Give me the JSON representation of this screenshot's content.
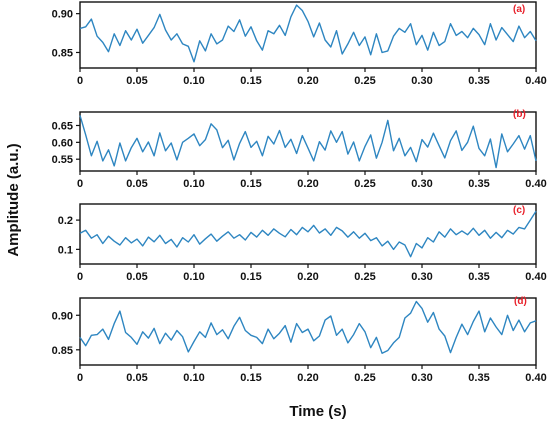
{
  "colors": {
    "series": "#2e86c1",
    "label": "#e8202a",
    "axis": "#111111"
  },
  "xlabel": "Time (s)",
  "ylabel": "Amplitude (a.u.)",
  "chart_data": [
    {
      "type": "line",
      "label": "(a)",
      "xlim": [
        0,
        0.4
      ],
      "ylim": [
        0.83,
        0.915
      ],
      "xticks": [
        "0",
        "0.05",
        "0.10",
        "0.15",
        "0.20",
        "0.25",
        "0.30",
        "0.35",
        "0.40"
      ],
      "yticks": [
        0.85,
        0.9
      ],
      "ytick_labels": [
        "0.85",
        "0.90"
      ],
      "x": [
        0.0,
        0.005,
        0.01,
        0.015,
        0.02,
        0.025,
        0.03,
        0.035,
        0.04,
        0.045,
        0.05,
        0.055,
        0.06,
        0.065,
        0.07,
        0.075,
        0.08,
        0.085,
        0.09,
        0.095,
        0.1,
        0.105,
        0.11,
        0.115,
        0.12,
        0.125,
        0.13,
        0.135,
        0.14,
        0.145,
        0.15,
        0.155,
        0.16,
        0.165,
        0.17,
        0.175,
        0.18,
        0.185,
        0.19,
        0.195,
        0.2,
        0.205,
        0.21,
        0.215,
        0.22,
        0.225,
        0.23,
        0.235,
        0.24,
        0.245,
        0.25,
        0.255,
        0.26,
        0.265,
        0.27,
        0.275,
        0.28,
        0.285,
        0.29,
        0.295,
        0.3,
        0.305,
        0.31,
        0.315,
        0.32,
        0.325,
        0.33,
        0.335,
        0.34,
        0.345,
        0.35,
        0.355,
        0.36,
        0.365,
        0.37,
        0.375,
        0.38,
        0.385,
        0.39,
        0.395,
        0.4
      ],
      "y": [
        0.881,
        0.883,
        0.893,
        0.871,
        0.863,
        0.851,
        0.874,
        0.859,
        0.878,
        0.866,
        0.88,
        0.862,
        0.872,
        0.882,
        0.899,
        0.879,
        0.866,
        0.874,
        0.861,
        0.858,
        0.838,
        0.865,
        0.852,
        0.874,
        0.861,
        0.866,
        0.884,
        0.877,
        0.892,
        0.871,
        0.883,
        0.865,
        0.853,
        0.878,
        0.874,
        0.885,
        0.872,
        0.896,
        0.911,
        0.904,
        0.89,
        0.87,
        0.888,
        0.866,
        0.857,
        0.878,
        0.848,
        0.861,
        0.876,
        0.859,
        0.87,
        0.847,
        0.874,
        0.85,
        0.852,
        0.871,
        0.881,
        0.876,
        0.887,
        0.86,
        0.872,
        0.853,
        0.876,
        0.859,
        0.864,
        0.887,
        0.872,
        0.877,
        0.869,
        0.881,
        0.873,
        0.86,
        0.887,
        0.866,
        0.882,
        0.873,
        0.864,
        0.884,
        0.869,
        0.877,
        0.865
      ]
    },
    {
      "type": "line",
      "label": "(b)",
      "xlim": [
        0,
        0.4
      ],
      "ylim": [
        0.515,
        0.69
      ],
      "xticks": [
        "0",
        "0.05",
        "0.10",
        "0.15",
        "0.20",
        "0.25",
        "0.30",
        "0.35",
        "0.40"
      ],
      "yticks": [
        0.55,
        0.6,
        0.65
      ],
      "ytick_labels": [
        "0.55",
        "0.60",
        "0.65"
      ],
      "x": [
        0.0,
        0.005,
        0.01,
        0.015,
        0.02,
        0.025,
        0.03,
        0.035,
        0.04,
        0.045,
        0.05,
        0.055,
        0.06,
        0.065,
        0.07,
        0.075,
        0.08,
        0.085,
        0.09,
        0.095,
        0.1,
        0.105,
        0.11,
        0.115,
        0.12,
        0.125,
        0.13,
        0.135,
        0.14,
        0.145,
        0.15,
        0.155,
        0.16,
        0.165,
        0.17,
        0.175,
        0.18,
        0.185,
        0.19,
        0.195,
        0.2,
        0.205,
        0.21,
        0.215,
        0.22,
        0.225,
        0.23,
        0.235,
        0.24,
        0.245,
        0.25,
        0.255,
        0.26,
        0.265,
        0.27,
        0.275,
        0.28,
        0.285,
        0.29,
        0.295,
        0.3,
        0.305,
        0.31,
        0.315,
        0.32,
        0.325,
        0.33,
        0.335,
        0.34,
        0.345,
        0.35,
        0.355,
        0.36,
        0.365,
        0.37,
        0.375,
        0.38,
        0.385,
        0.39,
        0.395,
        0.4
      ],
      "y": [
        0.68,
        0.622,
        0.56,
        0.603,
        0.545,
        0.578,
        0.53,
        0.598,
        0.545,
        0.584,
        0.612,
        0.572,
        0.601,
        0.56,
        0.628,
        0.575,
        0.598,
        0.548,
        0.6,
        0.612,
        0.625,
        0.59,
        0.608,
        0.655,
        0.637,
        0.584,
        0.606,
        0.548,
        0.597,
        0.632,
        0.585,
        0.603,
        0.56,
        0.618,
        0.595,
        0.635,
        0.585,
        0.609,
        0.567,
        0.62,
        0.583,
        0.545,
        0.602,
        0.577,
        0.634,
        0.6,
        0.632,
        0.565,
        0.601,
        0.545,
        0.588,
        0.622,
        0.553,
        0.6,
        0.665,
        0.575,
        0.612,
        0.56,
        0.585,
        0.543,
        0.608,
        0.586,
        0.627,
        0.59,
        0.554,
        0.605,
        0.634,
        0.576,
        0.6,
        0.648,
        0.582,
        0.56,
        0.61,
        0.525,
        0.625,
        0.572,
        0.595,
        0.62,
        0.58,
        0.62,
        0.545
      ]
    },
    {
      "type": "line",
      "label": "(c)",
      "xlim": [
        0,
        0.4
      ],
      "ylim": [
        0.05,
        0.255
      ],
      "xticks": [
        "0",
        "0.05",
        "0.10",
        "0.15",
        "0.20",
        "0.25",
        "0.30",
        "0.35",
        "0.40"
      ],
      "yticks": [
        0.1,
        0.2
      ],
      "ytick_labels": [
        "0.1",
        "0.2"
      ],
      "x": [
        0.0,
        0.005,
        0.01,
        0.015,
        0.02,
        0.025,
        0.03,
        0.035,
        0.04,
        0.045,
        0.05,
        0.055,
        0.06,
        0.065,
        0.07,
        0.075,
        0.08,
        0.085,
        0.09,
        0.095,
        0.1,
        0.105,
        0.11,
        0.115,
        0.12,
        0.125,
        0.13,
        0.135,
        0.14,
        0.145,
        0.15,
        0.155,
        0.16,
        0.165,
        0.17,
        0.175,
        0.18,
        0.185,
        0.19,
        0.195,
        0.2,
        0.205,
        0.21,
        0.215,
        0.22,
        0.225,
        0.23,
        0.235,
        0.24,
        0.245,
        0.25,
        0.255,
        0.26,
        0.265,
        0.27,
        0.275,
        0.28,
        0.285,
        0.29,
        0.295,
        0.3,
        0.305,
        0.31,
        0.315,
        0.32,
        0.325,
        0.33,
        0.335,
        0.34,
        0.345,
        0.35,
        0.355,
        0.36,
        0.365,
        0.37,
        0.375,
        0.38,
        0.385,
        0.39,
        0.395,
        0.4
      ],
      "y": [
        0.155,
        0.165,
        0.138,
        0.15,
        0.12,
        0.145,
        0.128,
        0.115,
        0.14,
        0.122,
        0.135,
        0.112,
        0.142,
        0.126,
        0.148,
        0.12,
        0.134,
        0.108,
        0.14,
        0.125,
        0.15,
        0.118,
        0.136,
        0.152,
        0.128,
        0.145,
        0.16,
        0.138,
        0.15,
        0.132,
        0.158,
        0.142,
        0.165,
        0.148,
        0.17,
        0.155,
        0.143,
        0.168,
        0.15,
        0.175,
        0.16,
        0.182,
        0.156,
        0.17,
        0.148,
        0.175,
        0.163,
        0.142,
        0.16,
        0.138,
        0.155,
        0.13,
        0.14,
        0.112,
        0.128,
        0.1,
        0.125,
        0.115,
        0.075,
        0.12,
        0.105,
        0.14,
        0.125,
        0.16,
        0.142,
        0.17,
        0.15,
        0.163,
        0.15,
        0.172,
        0.148,
        0.165,
        0.138,
        0.158,
        0.14,
        0.165,
        0.152,
        0.175,
        0.17,
        0.2,
        0.23
      ]
    },
    {
      "type": "line",
      "label": "(d)",
      "xlim": [
        0,
        0.4
      ],
      "ylim": [
        0.828,
        0.925
      ],
      "xticks": [
        "0",
        "0.05",
        "0.10",
        "0.15",
        "0.20",
        "0.25",
        "0.30",
        "0.35",
        "0.40"
      ],
      "yticks": [
        0.85,
        0.9
      ],
      "ytick_labels": [
        "0.85",
        "0.90"
      ],
      "x": [
        0.0,
        0.005,
        0.01,
        0.015,
        0.02,
        0.025,
        0.03,
        0.035,
        0.04,
        0.045,
        0.05,
        0.055,
        0.06,
        0.065,
        0.07,
        0.075,
        0.08,
        0.085,
        0.09,
        0.095,
        0.1,
        0.105,
        0.11,
        0.115,
        0.12,
        0.125,
        0.13,
        0.135,
        0.14,
        0.145,
        0.15,
        0.155,
        0.16,
        0.165,
        0.17,
        0.175,
        0.18,
        0.185,
        0.19,
        0.195,
        0.2,
        0.205,
        0.21,
        0.215,
        0.22,
        0.225,
        0.23,
        0.235,
        0.24,
        0.245,
        0.25,
        0.255,
        0.26,
        0.265,
        0.27,
        0.275,
        0.28,
        0.285,
        0.29,
        0.295,
        0.3,
        0.305,
        0.31,
        0.315,
        0.32,
        0.325,
        0.33,
        0.335,
        0.34,
        0.345,
        0.35,
        0.355,
        0.36,
        0.365,
        0.37,
        0.375,
        0.38,
        0.385,
        0.39,
        0.395,
        0.4
      ],
      "y": [
        0.868,
        0.856,
        0.871,
        0.872,
        0.88,
        0.865,
        0.888,
        0.906,
        0.875,
        0.868,
        0.858,
        0.876,
        0.867,
        0.881,
        0.859,
        0.874,
        0.864,
        0.878,
        0.869,
        0.847,
        0.862,
        0.876,
        0.868,
        0.889,
        0.872,
        0.879,
        0.866,
        0.884,
        0.897,
        0.878,
        0.871,
        0.868,
        0.859,
        0.88,
        0.866,
        0.874,
        0.885,
        0.861,
        0.888,
        0.875,
        0.88,
        0.863,
        0.87,
        0.893,
        0.899,
        0.871,
        0.88,
        0.86,
        0.872,
        0.888,
        0.876,
        0.853,
        0.868,
        0.845,
        0.849,
        0.86,
        0.868,
        0.896,
        0.903,
        0.92,
        0.91,
        0.89,
        0.904,
        0.88,
        0.87,
        0.846,
        0.868,
        0.887,
        0.872,
        0.891,
        0.906,
        0.876,
        0.896,
        0.883,
        0.872,
        0.9,
        0.878,
        0.893,
        0.876,
        0.889,
        0.892
      ]
    }
  ]
}
